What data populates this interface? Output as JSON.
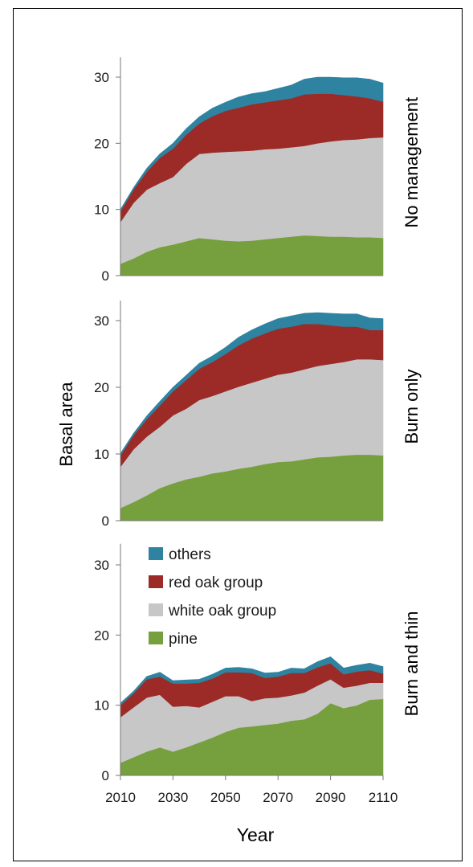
{
  "chart_data": {
    "type": "area",
    "stacked": true,
    "xlabel": "Year",
    "ylabel": "Basal area",
    "xlim": [
      2010,
      2110
    ],
    "ylim": [
      0,
      33
    ],
    "xticks": [
      2010,
      2030,
      2050,
      2070,
      2090,
      2110
    ],
    "yticks": [
      0,
      10,
      20,
      30
    ],
    "grid": false,
    "legend": {
      "placement": "top-left of bottom panel",
      "entries": [
        "others",
        "red oak group",
        "white oak group",
        "pine"
      ]
    },
    "colors": {
      "pine": "#76a03d",
      "white oak group": "#c7c7c7",
      "red oak group": "#9c2b28",
      "others": "#2e83a0"
    },
    "panels": [
      {
        "label": "No management",
        "x": [
          2010,
          2015,
          2020,
          2025,
          2030,
          2035,
          2040,
          2045,
          2050,
          2055,
          2060,
          2065,
          2070,
          2075,
          2080,
          2085,
          2090,
          2095,
          2100,
          2105,
          2110
        ],
        "series": [
          {
            "name": "pine",
            "values": [
              1.8,
              2.6,
              3.6,
              4.3,
              4.7,
              5.2,
              5.7,
              5.5,
              5.3,
              5.2,
              5.3,
              5.5,
              5.7,
              5.9,
              6.1,
              6.0,
              5.9,
              5.9,
              5.8,
              5.8,
              5.7
            ]
          },
          {
            "name": "white oak group",
            "values": [
              6.3,
              8.4,
              9.4,
              9.7,
              10.2,
              11.7,
              12.7,
              13.1,
              13.4,
              13.6,
              13.6,
              13.6,
              13.5,
              13.5,
              13.5,
              14.0,
              14.4,
              14.6,
              14.8,
              15.0,
              15.2
            ]
          },
          {
            "name": "red oak group",
            "values": [
              1.6,
              2.0,
              2.7,
              3.8,
              4.3,
              4.4,
              4.6,
              5.5,
              6.2,
              6.6,
              7.0,
              7.1,
              7.3,
              7.4,
              7.8,
              7.5,
              7.2,
              6.8,
              6.5,
              6.0,
              5.4
            ]
          },
          {
            "name": "others",
            "values": [
              0.3,
              0.3,
              0.5,
              0.6,
              0.8,
              0.9,
              1.0,
              1.2,
              1.3,
              1.6,
              1.6,
              1.6,
              1.8,
              2.0,
              2.3,
              2.5,
              2.5,
              2.6,
              2.8,
              2.9,
              2.8
            ]
          }
        ]
      },
      {
        "label": "Burn only",
        "x": [
          2010,
          2015,
          2020,
          2025,
          2030,
          2035,
          2040,
          2045,
          2050,
          2055,
          2060,
          2065,
          2070,
          2075,
          2080,
          2085,
          2090,
          2095,
          2100,
          2105,
          2110
        ],
        "series": [
          {
            "name": "pine",
            "values": [
              1.9,
              2.8,
              3.8,
              4.9,
              5.6,
              6.2,
              6.6,
              7.1,
              7.4,
              7.8,
              8.1,
              8.5,
              8.8,
              8.9,
              9.2,
              9.5,
              9.6,
              9.8,
              9.9,
              9.9,
              9.8
            ]
          },
          {
            "name": "white oak group",
            "values": [
              6.2,
              7.9,
              8.8,
              9.2,
              10.2,
              10.6,
              11.5,
              11.6,
              12.0,
              12.3,
              12.6,
              12.8,
              13.1,
              13.3,
              13.5,
              13.7,
              13.9,
              14.0,
              14.3,
              14.3,
              14.3
            ]
          },
          {
            "name": "red oak group",
            "values": [
              1.7,
              2.1,
              2.6,
              3.2,
              3.6,
              4.3,
              4.7,
              5.1,
              5.6,
              6.2,
              6.6,
              6.8,
              6.9,
              6.9,
              6.8,
              6.3,
              5.8,
              5.3,
              4.9,
              4.4,
              4.5
            ]
          },
          {
            "name": "others",
            "values": [
              0.3,
              0.3,
              0.5,
              0.6,
              0.6,
              0.7,
              0.8,
              0.9,
              1.0,
              1.2,
              1.3,
              1.4,
              1.5,
              1.6,
              1.6,
              1.7,
              1.8,
              1.9,
              1.9,
              1.8,
              1.7
            ]
          }
        ]
      },
      {
        "label": "Burn and thin",
        "x": [
          2010,
          2015,
          2020,
          2025,
          2030,
          2035,
          2040,
          2045,
          2050,
          2055,
          2060,
          2065,
          2070,
          2075,
          2080,
          2085,
          2090,
          2095,
          2100,
          2105,
          2110
        ],
        "series": [
          {
            "name": "pine",
            "values": [
              1.8,
              2.6,
              3.4,
              4.0,
              3.4,
              4.0,
              4.7,
              5.4,
              6.2,
              6.8,
              7.0,
              7.2,
              7.4,
              7.8,
              8.0,
              8.8,
              10.3,
              9.6,
              10.0,
              10.8,
              10.9
            ]
          },
          {
            "name": "white oak group",
            "values": [
              6.5,
              7.1,
              7.7,
              7.5,
              6.4,
              5.9,
              5.0,
              5.1,
              5.1,
              4.5,
              3.6,
              3.8,
              3.7,
              3.6,
              3.8,
              4.0,
              3.4,
              2.9,
              2.8,
              2.4,
              2.3
            ]
          },
          {
            "name": "red oak group",
            "values": [
              1.7,
              2.0,
              2.6,
              2.6,
              3.3,
              3.2,
              3.5,
              3.3,
              3.4,
              3.4,
              4.0,
              2.9,
              3.0,
              3.2,
              2.8,
              2.6,
              2.3,
              1.9,
              2.0,
              1.8,
              1.3
            ]
          },
          {
            "name": "others",
            "values": [
              0.3,
              0.3,
              0.4,
              0.6,
              0.4,
              0.5,
              0.5,
              0.6,
              0.6,
              0.7,
              0.6,
              0.7,
              0.6,
              0.7,
              0.6,
              0.8,
              0.9,
              0.9,
              0.9,
              1.0,
              1.0
            ]
          }
        ]
      }
    ]
  }
}
